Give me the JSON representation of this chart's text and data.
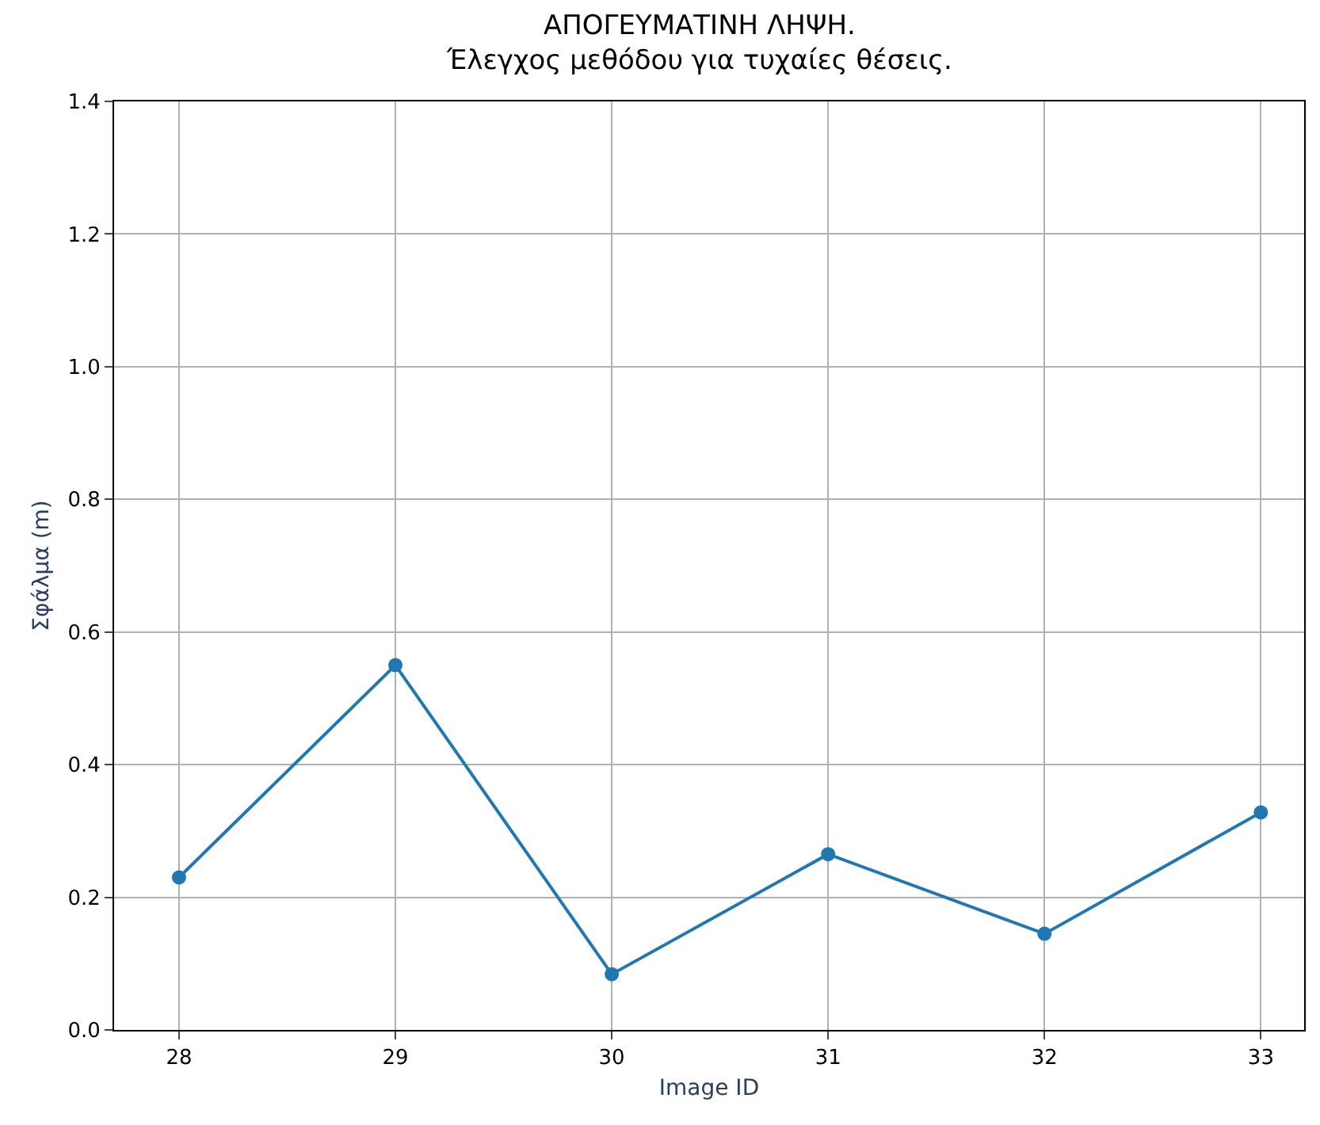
{
  "chart_data": {
    "type": "line",
    "title": "ΑΠΟΓΕΥΜΑΤΙΝΗ ΛΗΨΗ.\nΈλεγχος μεθόδου για τυχαίες θέσεις.",
    "xlabel": "Image ID",
    "ylabel": "Σφάλμα (m)",
    "x": [
      28,
      29,
      30,
      31,
      32,
      33
    ],
    "series": [
      {
        "color": "#1f77b4",
        "values": [
          0.23,
          0.55,
          0.084,
          0.265,
          0.145,
          0.328
        ]
      }
    ],
    "xlim": [
      27.7,
      33.2
    ],
    "xticks": [
      28,
      29,
      30,
      31,
      32,
      33
    ],
    "ylim": [
      0,
      1.4
    ],
    "yticks": [
      {
        "value": 0,
        "label": "0.0"
      },
      {
        "value": 0.2,
        "label": "0.2"
      },
      {
        "value": 0.4,
        "label": "0.4"
      },
      {
        "value": 0.6,
        "label": "0.6"
      },
      {
        "value": 0.8,
        "label": "0.8"
      },
      {
        "value": 1.0,
        "label": "1.0"
      },
      {
        "value": 1.2,
        "label": "1.2"
      },
      {
        "value": 1.4,
        "label": "1.4"
      }
    ],
    "grid": true,
    "marker": "circle",
    "line_style": "solid"
  }
}
